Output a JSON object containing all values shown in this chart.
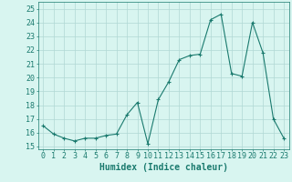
{
  "x": [
    0,
    1,
    2,
    3,
    4,
    5,
    6,
    7,
    8,
    9,
    10,
    11,
    12,
    13,
    14,
    15,
    16,
    17,
    18,
    19,
    20,
    21,
    22,
    23
  ],
  "y": [
    16.5,
    15.9,
    15.6,
    15.4,
    15.6,
    15.6,
    15.8,
    15.9,
    17.3,
    18.2,
    15.2,
    18.4,
    19.7,
    21.3,
    21.6,
    21.7,
    24.2,
    24.6,
    20.3,
    20.1,
    24.0,
    21.8,
    17.0,
    15.6
  ],
  "line_color": "#1a7a6e",
  "marker": "+",
  "marker_color": "#1a7a6e",
  "bg_color": "#d8f5f0",
  "grid_color": "#b0d8d4",
  "xlabel": "Humidex (Indice chaleur)",
  "ylabel_ticks": [
    15,
    16,
    17,
    18,
    19,
    20,
    21,
    22,
    23,
    24,
    25
  ],
  "xlim": [
    -0.5,
    23.5
  ],
  "ylim": [
    14.8,
    25.5
  ],
  "xtick_labels": [
    "0",
    "1",
    "2",
    "3",
    "4",
    "5",
    "6",
    "7",
    "8",
    "9",
    "10",
    "11",
    "12",
    "13",
    "14",
    "15",
    "16",
    "17",
    "18",
    "19",
    "20",
    "21",
    "22",
    "23"
  ],
  "tick_color": "#1a7a6e",
  "axis_label_color": "#1a7a6e",
  "font_size_label": 7,
  "font_size_tick": 6
}
